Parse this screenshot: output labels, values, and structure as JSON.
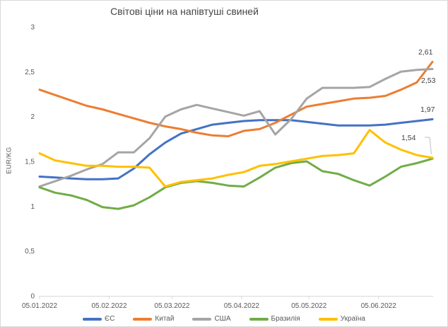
{
  "chart_data": {
    "type": "line",
    "title": "Світові ціни на напівтуші свиней",
    "ylabel": "EUR/KG",
    "ylim": [
      0,
      3
    ],
    "grid": false,
    "legend_position": "bottom",
    "y_ticks": [
      "0",
      "0,5",
      "1",
      "1,5",
      "2",
      "2,5",
      "3"
    ],
    "x_ticks": [
      {
        "day": 0,
        "label": "05.01.2022"
      },
      {
        "day": 31,
        "label": "05.02.2022"
      },
      {
        "day": 59,
        "label": "05.03.2022"
      },
      {
        "day": 90,
        "label": "05.04.2022"
      },
      {
        "day": 120,
        "label": "05.05.2022"
      },
      {
        "day": 151,
        "label": "05.06.2022"
      }
    ],
    "x_interval_days": 7,
    "x_total_days": 175,
    "series": [
      {
        "name": "ЄС",
        "color": "#4472C4",
        "end_label": "1,97",
        "values": [
          1.33,
          1.32,
          1.31,
          1.3,
          1.3,
          1.31,
          1.42,
          1.58,
          1.71,
          1.81,
          1.86,
          1.91,
          1.93,
          1.95,
          1.96,
          1.96,
          1.96,
          1.94,
          1.92,
          1.9,
          1.9,
          1.9,
          1.91,
          1.93,
          1.95,
          1.97
        ]
      },
      {
        "name": "Китай",
        "color": "#ED7D31",
        "end_label": "2,61",
        "values": [
          2.3,
          2.24,
          2.18,
          2.12,
          2.08,
          2.03,
          1.98,
          1.93,
          1.89,
          1.86,
          1.82,
          1.79,
          1.78,
          1.84,
          1.86,
          1.93,
          2.02,
          2.11,
          2.14,
          2.17,
          2.2,
          2.21,
          2.23,
          2.3,
          2.38,
          2.61
        ]
      },
      {
        "name": "США",
        "color": "#A5A5A5",
        "end_label": "2,53",
        "values": [
          1.22,
          1.28,
          1.34,
          1.41,
          1.47,
          1.6,
          1.6,
          1.76,
          2.0,
          2.08,
          2.13,
          2.09,
          2.05,
          2.01,
          2.06,
          1.8,
          1.97,
          2.2,
          2.32,
          2.32,
          2.32,
          2.33,
          2.42,
          2.5,
          2.52,
          2.53
        ]
      },
      {
        "name": "Бразилія",
        "color": "#70AD47",
        "end_label": null,
        "values": [
          1.21,
          1.15,
          1.12,
          1.07,
          0.99,
          0.97,
          1.01,
          1.1,
          1.21,
          1.26,
          1.28,
          1.26,
          1.23,
          1.22,
          1.32,
          1.43,
          1.48,
          1.5,
          1.39,
          1.36,
          1.29,
          1.23,
          1.33,
          1.44,
          1.48,
          1.53
        ]
      },
      {
        "name": "Україна",
        "color": "#FFC000",
        "end_label": "1,54",
        "values": [
          1.59,
          1.51,
          1.48,
          1.45,
          1.45,
          1.44,
          1.44,
          1.43,
          1.22,
          1.27,
          1.29,
          1.31,
          1.35,
          1.38,
          1.45,
          1.47,
          1.5,
          1.53,
          1.56,
          1.57,
          1.59,
          1.85,
          1.71,
          1.63,
          1.57,
          1.54
        ]
      }
    ]
  }
}
